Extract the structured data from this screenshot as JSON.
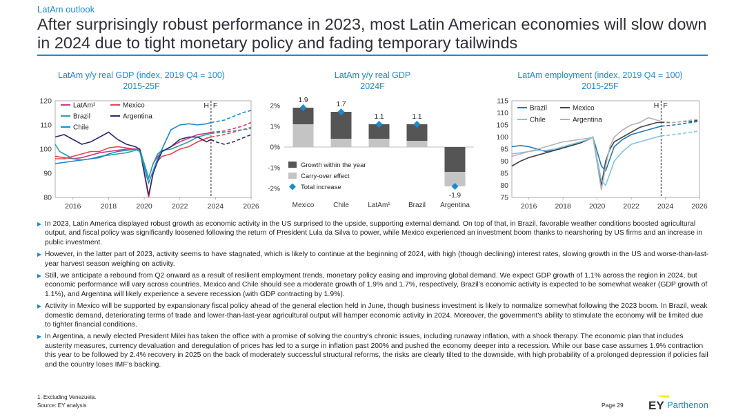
{
  "section": "LatAm outlook",
  "title": "After surprisingly robust performance in 2023, most Latin American economies will slow down in 2024 due to tight monetary policy and fading temporary tailwinds",
  "colors": {
    "accent": "#1a8bd0",
    "teal": "#2aa39a",
    "dark_navy": "#2a2a6e",
    "red": "#e8434a",
    "pink": "#d63384",
    "dark_gray": "#555555",
    "light_gray": "#c4c4c4",
    "blue": "#1f78b4",
    "light_blue": "#7cc4ea"
  },
  "chart_data": [
    {
      "type": "line",
      "title": "LatAm y/y real GDP (index, 2019 Q4 = 100)",
      "subtitle": "2015-25F",
      "ylim": [
        80,
        120
      ],
      "yticks": [
        "80",
        "90",
        "100",
        "110",
        "120"
      ],
      "xlim": [
        2015,
        2026
      ],
      "xticks": [
        "2016",
        "2018",
        "2020",
        "2022",
        "2024",
        "2026"
      ],
      "annotations": [
        "H",
        "F"
      ],
      "forecast_start": 2023.75,
      "series": [
        {
          "name": "LatAm¹",
          "color": "#d63384",
          "x": [
            2015,
            2015.5,
            2016,
            2016.5,
            2017,
            2017.5,
            2018,
            2018.5,
            2019,
            2019.5,
            2019.75,
            2020.25,
            2020.5,
            2020.75,
            2021,
            2021.5,
            2022,
            2022.5,
            2023,
            2023.5,
            2023.75
          ],
          "y": [
            97,
            96.5,
            96,
            96.5,
            97.5,
            98.5,
            99,
            99.5,
            100,
            100,
            100,
            88,
            94,
            97,
            99,
            101,
            103,
            104.5,
            106,
            106.5,
            107
          ],
          "fx": [
            2023.75,
            2024.5,
            2025,
            2025.5,
            2026
          ],
          "fy": [
            107,
            107.5,
            108.5,
            109.5,
            111
          ]
        },
        {
          "name": "Mexico",
          "color": "#e8434a",
          "x": [
            2015,
            2015.5,
            2016,
            2016.5,
            2017,
            2017.5,
            2018,
            2018.5,
            2019,
            2019.5,
            2019.75,
            2020.25,
            2020.5,
            2020.75,
            2021,
            2021.5,
            2022,
            2022.5,
            2023,
            2023.5,
            2023.75
          ],
          "y": [
            96,
            96,
            97,
            98,
            99,
            99,
            100.5,
            101,
            100.5,
            100,
            100,
            80,
            90,
            95,
            97,
            98,
            100,
            101,
            103,
            104.5,
            105
          ],
          "fx": [
            2023.75,
            2024.5,
            2025,
            2025.5,
            2026
          ],
          "fy": [
            105,
            106,
            107,
            108,
            109
          ]
        },
        {
          "name": "Brazil",
          "color": "#2aa39a",
          "x": [
            2015,
            2015.25,
            2015.75,
            2016,
            2016.5,
            2017,
            2017.5,
            2018,
            2018.5,
            2019,
            2019.5,
            2019.75,
            2020.25,
            2020.5,
            2020.75,
            2021,
            2021.5,
            2022,
            2022.5,
            2023,
            2023.5,
            2023.75
          ],
          "y": [
            102,
            99,
            97,
            96,
            95.5,
            96,
            97,
            97.5,
            98,
            98.5,
            99.5,
            100,
            88,
            94,
            98,
            99.5,
            100,
            101.5,
            103,
            105,
            106,
            106.5
          ],
          "fx": [
            2023.75,
            2024.5,
            2025,
            2025.5,
            2026
          ],
          "fy": [
            106.5,
            107,
            107.5,
            108,
            108.5
          ]
        },
        {
          "name": "Argentina",
          "color": "#2a2a6e",
          "x": [
            2015,
            2015.5,
            2016,
            2016.5,
            2017,
            2017.5,
            2018,
            2018.5,
            2019,
            2019.5,
            2019.75,
            2020.25,
            2020.5,
            2020.75,
            2021,
            2021.5,
            2022,
            2022.5,
            2023,
            2023.5,
            2023.75
          ],
          "y": [
            105,
            106,
            104,
            102,
            103,
            105,
            107,
            104,
            102,
            101,
            100,
            81,
            90,
            95,
            99,
            101,
            104,
            105,
            105,
            103,
            104
          ],
          "fx": [
            2023.75,
            2024,
            2024.5,
            2025,
            2025.5,
            2026
          ],
          "fy": [
            104,
            103,
            102,
            103,
            104.5,
            106
          ]
        },
        {
          "name": "Chile",
          "color": "#1a8bd0",
          "x": [
            2015,
            2015.5,
            2016,
            2016.5,
            2017,
            2017.5,
            2018,
            2018.5,
            2019,
            2019.5,
            2019.75,
            2020.25,
            2020.5,
            2020.75,
            2021,
            2021.5,
            2022,
            2022.5,
            2023,
            2023.5,
            2023.75
          ],
          "y": [
            94,
            94.5,
            95,
            95.5,
            96,
            96.5,
            98,
            99,
            99.5,
            100,
            99,
            86,
            91,
            96,
            100,
            108,
            110,
            110.5,
            110,
            110.5,
            111
          ],
          "fx": [
            2023.75,
            2024.5,
            2025,
            2025.5,
            2026
          ],
          "fy": [
            111,
            112,
            113.5,
            115,
            116
          ]
        }
      ]
    },
    {
      "type": "bar",
      "title": "LatAm y/y real GDP",
      "subtitle": "2024F",
      "categories": [
        "Mexico",
        "Chile",
        "LatAm¹",
        "Brazil",
        "Argentina"
      ],
      "ylim": [
        -2,
        2
      ],
      "yticks": [
        "-2%",
        "-1%",
        "0%",
        "1%",
        "2%"
      ],
      "series": [
        {
          "name": "Growth within the year",
          "color": "#555555",
          "values": [
            0.8,
            1.3,
            0.7,
            0.8,
            -1.2
          ]
        },
        {
          "name": "Carry-over effect",
          "color": "#c4c4c4",
          "values": [
            1.1,
            0.4,
            0.4,
            0.3,
            -0.7
          ]
        },
        {
          "name": "Total increase",
          "color": "#1a8bd0",
          "values": [
            1.9,
            1.7,
            1.1,
            1.1,
            -1.9
          ]
        }
      ],
      "labels": [
        "1.9",
        "1.7",
        "1.1",
        "1.1",
        "-1.9"
      ]
    },
    {
      "type": "line",
      "title": "LatAm employment (index, 2019 Q4 = 100)",
      "subtitle": "2015-25F",
      "ylim": [
        75,
        115
      ],
      "yticks": [
        "75",
        "80",
        "85",
        "90",
        "95",
        "100",
        "105",
        "110",
        "115"
      ],
      "xlim": [
        2015,
        2026
      ],
      "xticks": [
        "2016",
        "2018",
        "2020",
        "2022",
        "2024",
        "2026"
      ],
      "annotations": [
        "H",
        "F"
      ],
      "forecast_start": 2023.75,
      "series": [
        {
          "name": "Brazil",
          "color": "#1f78b4",
          "x": [
            2015,
            2015.5,
            2016,
            2016.5,
            2017,
            2017.5,
            2018,
            2018.5,
            2019,
            2019.5,
            2019.75,
            2020.25,
            2020.5,
            2020.75,
            2021,
            2021.5,
            2022,
            2022.5,
            2023,
            2023.5,
            2023.75
          ],
          "y": [
            96,
            96.5,
            96,
            95,
            94,
            94.5,
            95.5,
            96.5,
            97.5,
            99,
            100,
            88,
            86,
            91,
            96,
            99,
            101,
            102,
            103,
            104,
            104.5
          ],
          "fx": [
            2023.75,
            2024.5,
            2025,
            2025.5,
            2026
          ],
          "fy": [
            104.5,
            105,
            105.5,
            106,
            106.5
          ]
        },
        {
          "name": "Mexico",
          "color": "#444444",
          "x": [
            2015,
            2015.5,
            2016,
            2016.5,
            2017,
            2017.5,
            2018,
            2018.5,
            2019,
            2019.5,
            2019.75,
            2020.25,
            2020.5,
            2020.75,
            2021,
            2021.5,
            2022,
            2022.5,
            2023,
            2023.5,
            2023.75
          ],
          "y": [
            88,
            90,
            91.5,
            92.5,
            93.5,
            94.5,
            95.5,
            96.5,
            97.5,
            99,
            100,
            80,
            90,
            95,
            98,
            100,
            102,
            104,
            105,
            106,
            106
          ],
          "fx": [
            2023.75,
            2024.5,
            2025,
            2025.5,
            2026
          ],
          "fy": [
            106,
            106,
            106.5,
            106.5,
            107
          ]
        },
        {
          "name": "Chile",
          "color": "#7cc4ea",
          "x": [
            2015,
            2015.5,
            2016,
            2016.5,
            2017,
            2017.5,
            2018,
            2018.5,
            2019,
            2019.5,
            2019.75,
            2020.25,
            2020.5,
            2020.75,
            2021,
            2021.5,
            2022,
            2022.5,
            2023,
            2023.5,
            2023.75
          ],
          "y": [
            93,
            93.5,
            94,
            94.5,
            94.5,
            95,
            96,
            97,
            98,
            99,
            100,
            82,
            80,
            85,
            90,
            94,
            97,
            98,
            99,
            100,
            100.5
          ],
          "fx": [
            2023.75,
            2024.5,
            2025,
            2025.5,
            2026
          ],
          "fy": [
            100.5,
            101,
            101.5,
            102,
            102.5
          ]
        },
        {
          "name": "Argentina",
          "color": "#b3b3b3",
          "x": [
            2015,
            2015.5,
            2016,
            2016.5,
            2017,
            2017.5,
            2018,
            2018.5,
            2019,
            2019.5,
            2019.75,
            2020.25,
            2020.5,
            2020.75,
            2021,
            2021.5,
            2022,
            2022.5,
            2023,
            2023.5,
            2023.75
          ],
          "y": [
            92,
            93,
            94,
            95,
            96,
            97,
            98,
            98.5,
            99,
            99.5,
            100,
            78,
            88,
            96,
            100,
            103,
            105,
            106,
            108,
            107,
            106.5
          ],
          "fx": [
            2023.75,
            2024.5,
            2025,
            2025.5,
            2026
          ],
          "fy": [
            106.5,
            106,
            106.5,
            107,
            107.5
          ]
        }
      ]
    }
  ],
  "bullets": [
    "In 2023, Latin America displayed robust growth as economic activity in the US surprised to the upside, supporting external demand. On top of that, in Brazil, favorable weather conditions boosted agricultural output, and fiscal policy was significantly loosened following the return of President Lula da Silva to power, while Mexico experienced an investment boom thanks to nearshoring by US firms and an increase in public investment.",
    "However, in the latter part of 2023, activity seems to have stagnated, which is likely to continue at the beginning of 2024, with high (though declining) interest rates, slowing growth in the US and worse-than-last-year harvest season weighing on activity.",
    "Still, we anticipate a rebound from Q2 onward as a result of resilient employment trends, monetary policy easing and improving global demand. We expect GDP growth of 1.1% across the region in 2024, but economic performance will vary across countries. Mexico and Chile should see a moderate growth of 1.9% and 1.7%, respectively, Brazil's economic activity is expected to be somewhat weaker (GDP growth of 1.1%), and Argentina will likely experience a severe recession (with GDP contracting by 1.9%).",
    "Activity in Mexico will be supported by expansionary fiscal policy ahead of the general election held in June, though business investment is likely to normalize somewhat following the 2023 boom. In Brazil, weak domestic demand, deteriorating terms of trade and lower-than-last-year agricultural output will hamper economic activity in 2024. Moreover, the government's ability to stimulate the economy will be limited due to tighter financial conditions.",
    "In Argentina, a newly elected President Milei has taken the office with a promise of solving the country's chronic issues, including runaway inflation, with a shock therapy. The economic plan that includes austerity measures, currency devaluation and deregulation of prices has led to a surge in inflation past 200% and pushed the economy deeper into a recession. While our base case assumes 1.9% contraction this year to be followed by 2.4% recovery in 2025 on the back of moderately successful structural reforms, the risks are clearly tilted to the downside, with high probability of a prolonged depression if policies fail and the country loses IMF's backing."
  ],
  "footnote": "1.   Excluding Venezuela.",
  "source": "Source:  EY analysis",
  "page": "Page 29",
  "logo": {
    "ey": "EY",
    "brand": "Parthenon"
  }
}
